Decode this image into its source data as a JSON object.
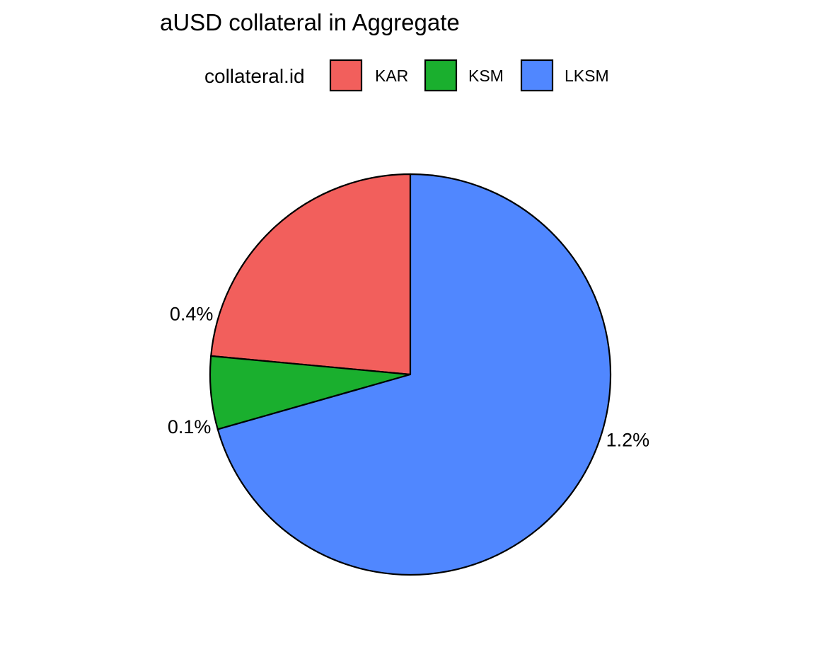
{
  "chart_data": {
    "type": "pie",
    "title": "aUSD collateral in Aggregate",
    "legend": {
      "title": "collateral.id",
      "placement": "top"
    },
    "categories": [
      "KAR",
      "KSM",
      "LKSM"
    ],
    "values": [
      0.4,
      0.1,
      1.2
    ],
    "labels": [
      "0.4%",
      "0.1%",
      "1.2%"
    ],
    "colors": [
      "#F25F5C",
      "#1AAF2E",
      "#5087FF"
    ],
    "start_angle": "12 o'clock",
    "direction": "counterclockwise",
    "grid": false
  }
}
